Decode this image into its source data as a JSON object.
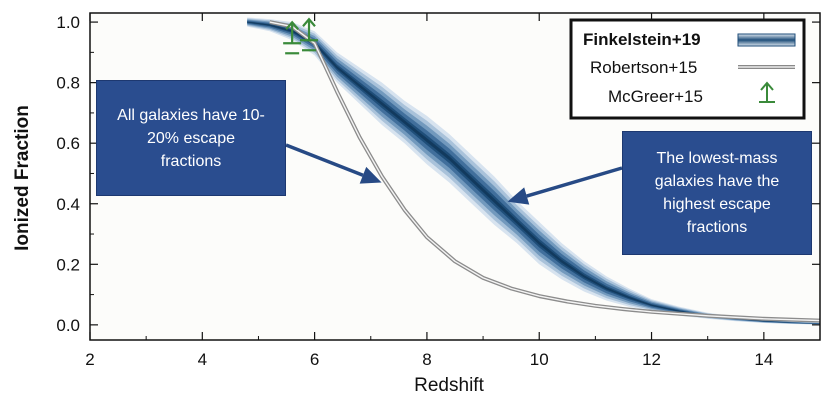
{
  "chart_data": {
    "type": "line",
    "xlabel": "Redshift",
    "ylabel": "Ionized Fraction",
    "xlim": [
      2,
      15
    ],
    "ylim": [
      -0.05,
      1.03
    ],
    "xticks": [
      2,
      4,
      6,
      8,
      10,
      12,
      14
    ],
    "yticks": [
      0.0,
      0.2,
      0.4,
      0.6,
      0.8,
      1.0
    ],
    "xtick_labels": [
      "2",
      "4",
      "6",
      "8",
      "10",
      "12",
      "14"
    ],
    "ytick_labels": [
      "0.0",
      "0.2",
      "0.4",
      "0.6",
      "0.8",
      "1.0"
    ],
    "legend_position": "top-right",
    "series": [
      {
        "name": "Finkelstein+19",
        "style": "band",
        "color": "#1f4e79",
        "x": [
          4.8,
          5.2,
          5.6,
          6.0,
          6.4,
          6.8,
          7.2,
          7.6,
          8.0,
          8.4,
          8.8,
          9.2,
          9.6,
          10.0,
          10.4,
          10.8,
          11.2,
          11.6,
          12.0,
          12.5,
          13.0,
          13.5,
          14.0,
          14.5,
          15.0
        ],
        "y": [
          1.0,
          0.99,
          0.97,
          0.93,
          0.85,
          0.79,
          0.73,
          0.67,
          0.61,
          0.55,
          0.48,
          0.41,
          0.34,
          0.27,
          0.21,
          0.16,
          0.12,
          0.09,
          0.065,
          0.045,
          0.03,
          0.02,
          0.012,
          0.007,
          0.004
        ],
        "half_width": [
          0.015,
          0.02,
          0.03,
          0.04,
          0.05,
          0.06,
          0.07,
          0.07,
          0.08,
          0.08,
          0.08,
          0.08,
          0.07,
          0.07,
          0.06,
          0.05,
          0.04,
          0.03,
          0.02,
          0.015,
          0.01,
          0.008,
          0.006,
          0.004,
          0.003
        ]
      },
      {
        "name": "Robertson+15",
        "style": "line",
        "color": "#a0a0a0",
        "x": [
          5.2,
          5.6,
          6.0,
          6.4,
          6.8,
          7.2,
          7.6,
          8.0,
          8.5,
          9.0,
          9.5,
          10.0,
          10.5,
          11.0,
          11.5,
          12.0,
          13.0,
          14.0,
          15.0
        ],
        "y": [
          1.0,
          0.985,
          0.93,
          0.77,
          0.62,
          0.49,
          0.38,
          0.29,
          0.21,
          0.155,
          0.12,
          0.095,
          0.077,
          0.063,
          0.052,
          0.043,
          0.03,
          0.02,
          0.014
        ]
      },
      {
        "name": "McGreer+15",
        "style": "lower-limit",
        "color": "#3a8a3a",
        "points": [
          {
            "x": 5.6,
            "y": 0.93
          },
          {
            "x": 5.9,
            "y": 0.94
          }
        ]
      }
    ],
    "annotations": [
      {
        "text": "All galaxies have 10-20% escape fractions",
        "arrow_to": {
          "x": 7.05,
          "y": 0.49
        }
      },
      {
        "text": "The lowest-mass galaxies have the highest escape fractions",
        "arrow_to": {
          "x": 9.4,
          "y": 0.42
        }
      }
    ]
  },
  "callouts": {
    "left": "All galaxies have 10-20% escape fractions",
    "right": "The lowest-mass galaxies have the highest escape fractions"
  }
}
